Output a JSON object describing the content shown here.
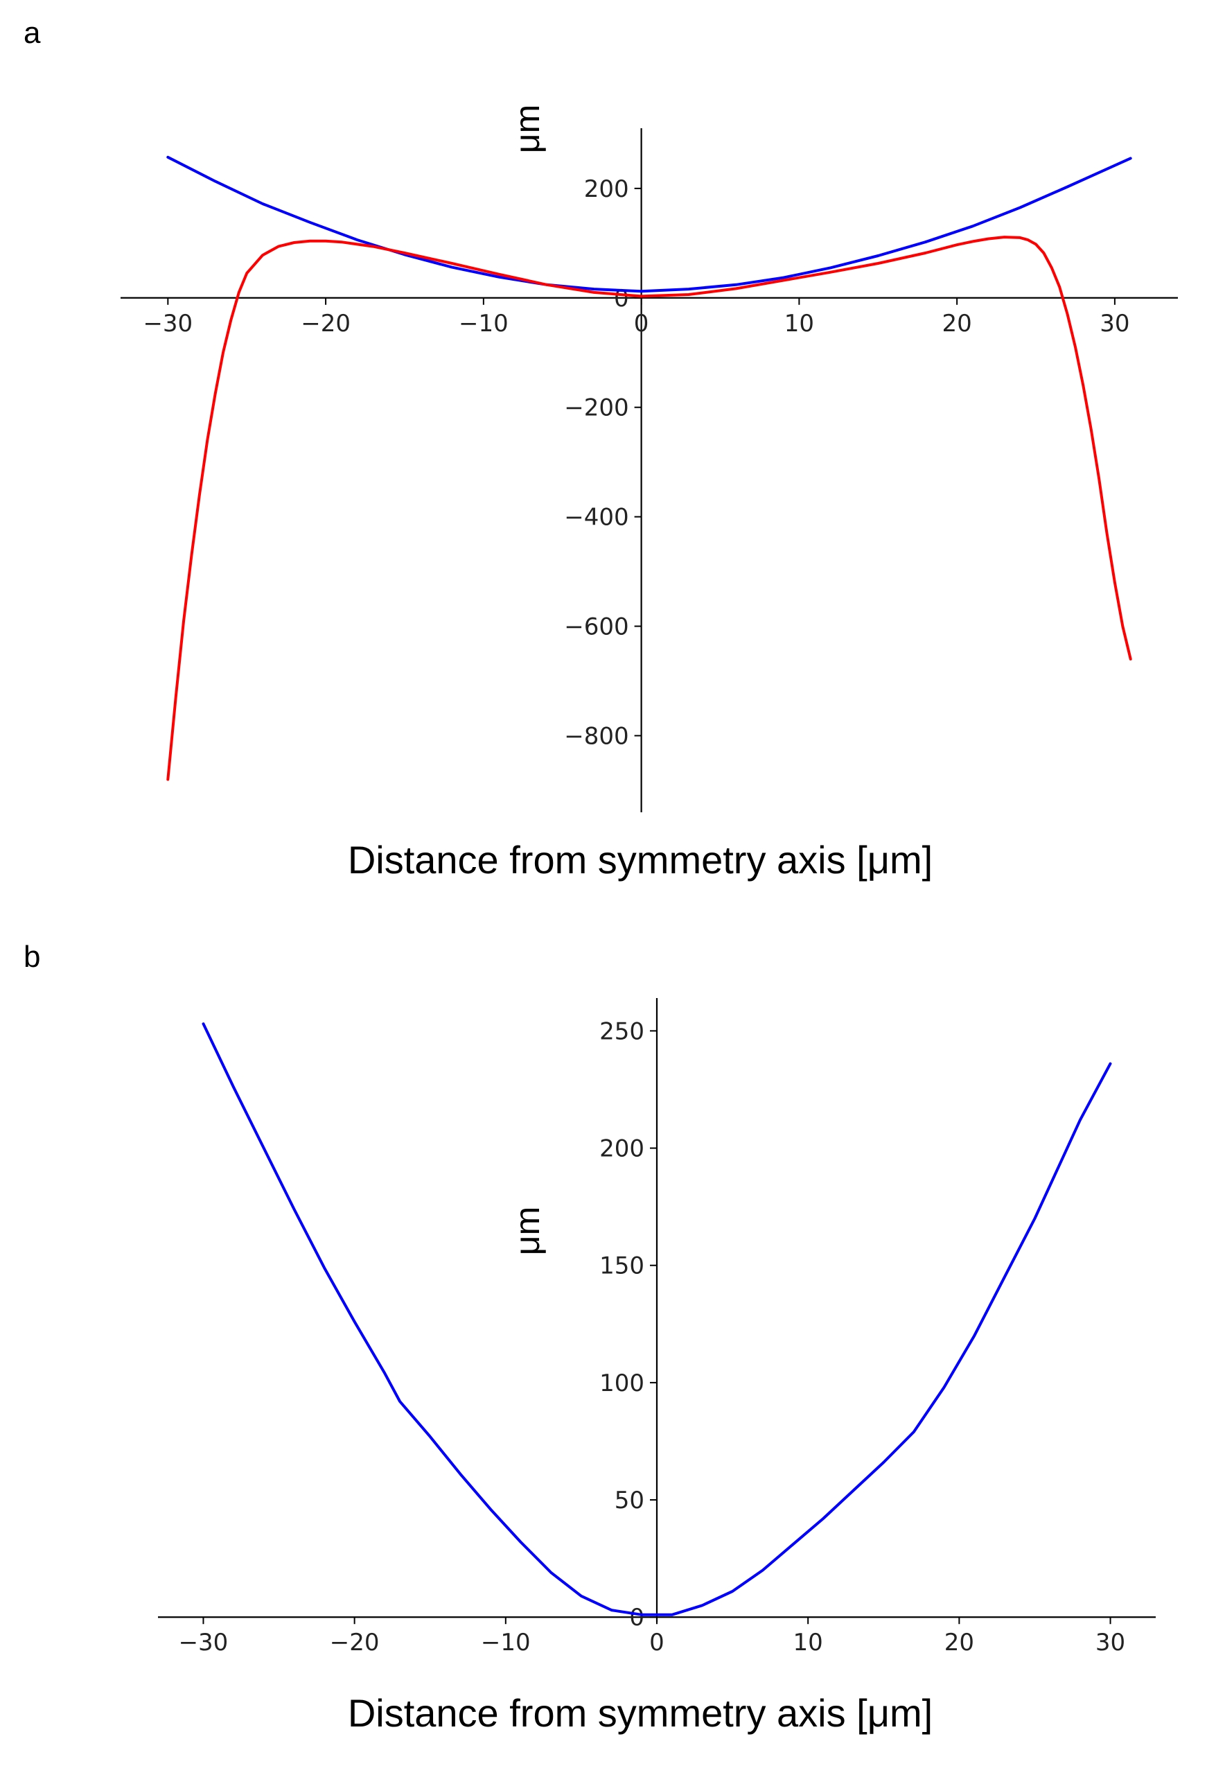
{
  "panels": {
    "a": {
      "label": "a"
    },
    "b": {
      "label": "b"
    }
  },
  "chart_data": [
    {
      "type": "line",
      "panel": "a",
      "xlabel": "Distance from symmetry axis [μm]",
      "ylabel": "μm",
      "xlim": [
        -33,
        34
      ],
      "ylim": [
        -940,
        310
      ],
      "xticks": [
        -30,
        -20,
        -10,
        0,
        10,
        20,
        30
      ],
      "xtick_labels": [
        "−30",
        "−20",
        "−10",
        "0",
        "10",
        "20",
        "30"
      ],
      "yticks": [
        -800,
        -600,
        -400,
        -200,
        0,
        200
      ],
      "ytick_labels": [
        "−800",
        "−600",
        "−400",
        "−200",
        "0",
        "200"
      ],
      "grid": false,
      "series": [
        {
          "color": "#0000ff",
          "x": [
            -30,
            -27,
            -24,
            -21,
            -18,
            -15,
            -12,
            -9,
            -6,
            -3,
            0,
            3,
            6,
            9,
            12,
            15,
            18,
            21,
            24,
            27,
            31
          ],
          "y": [
            257,
            213,
            172,
            138,
            106,
            79,
            56,
            38,
            24,
            16,
            12,
            16,
            24,
            37,
            55,
            77,
            102,
            131,
            165,
            203,
            255
          ]
        },
        {
          "color": "#ff0000",
          "x": [
            -30,
            -29.5,
            -29,
            -28.5,
            -28,
            -27.5,
            -27,
            -26.5,
            -26,
            -25.5,
            -25,
            -24,
            -23,
            -22,
            -21,
            -20,
            -19,
            -17,
            -15,
            -12,
            -9,
            -6,
            -3,
            0,
            3,
            6,
            9,
            12,
            15,
            18,
            20,
            21,
            22,
            23,
            24,
            24.5,
            25,
            25.5,
            26,
            26.5,
            27,
            27.5,
            28,
            28.5,
            29,
            29.5,
            30,
            30.5,
            31
          ],
          "y": [
            -880,
            -730,
            -590,
            -470,
            -360,
            -260,
            -175,
            -100,
            -40,
            10,
            45,
            78,
            94,
            101,
            104,
            104,
            102,
            94,
            82,
            63,
            43,
            24,
            10,
            3,
            6,
            17,
            32,
            47,
            63,
            82,
            97,
            103,
            108,
            111,
            110,
            106,
            98,
            82,
            55,
            20,
            -30,
            -90,
            -160,
            -240,
            -330,
            -430,
            -520,
            -600,
            -660
          ]
        }
      ]
    },
    {
      "type": "line",
      "panel": "b",
      "xlabel": "Distance from symmetry axis [μm]",
      "ylabel": "μm",
      "xlim": [
        -33,
        33
      ],
      "ylim": [
        -2,
        264
      ],
      "xticks": [
        -30,
        -20,
        -10,
        0,
        10,
        20,
        30
      ],
      "xtick_labels": [
        "−30",
        "−20",
        "−10",
        "0",
        "10",
        "20",
        "30"
      ],
      "yticks": [
        0,
        50,
        100,
        150,
        200,
        250
      ],
      "ytick_labels": [
        "0",
        "50",
        "100",
        "150",
        "200",
        "250"
      ],
      "grid": false,
      "series": [
        {
          "color": "#0000ff",
          "x": [
            -30,
            -28,
            -26,
            -24,
            -22,
            -20,
            -18,
            -17,
            -15,
            -13,
            -11,
            -9,
            -7,
            -5,
            -3,
            -1,
            0,
            1,
            3,
            5,
            7,
            9,
            11,
            13,
            15,
            17,
            19,
            21,
            23,
            25,
            27,
            28,
            30
          ],
          "y": [
            253,
            226,
            200,
            174,
            149,
            126,
            104,
            92,
            77,
            61,
            46,
            32,
            19,
            9,
            3,
            1,
            1,
            1,
            5,
            11,
            20,
            31,
            42,
            54,
            66,
            79,
            98,
            120,
            145,
            170,
            198,
            212,
            236
          ]
        }
      ]
    }
  ]
}
